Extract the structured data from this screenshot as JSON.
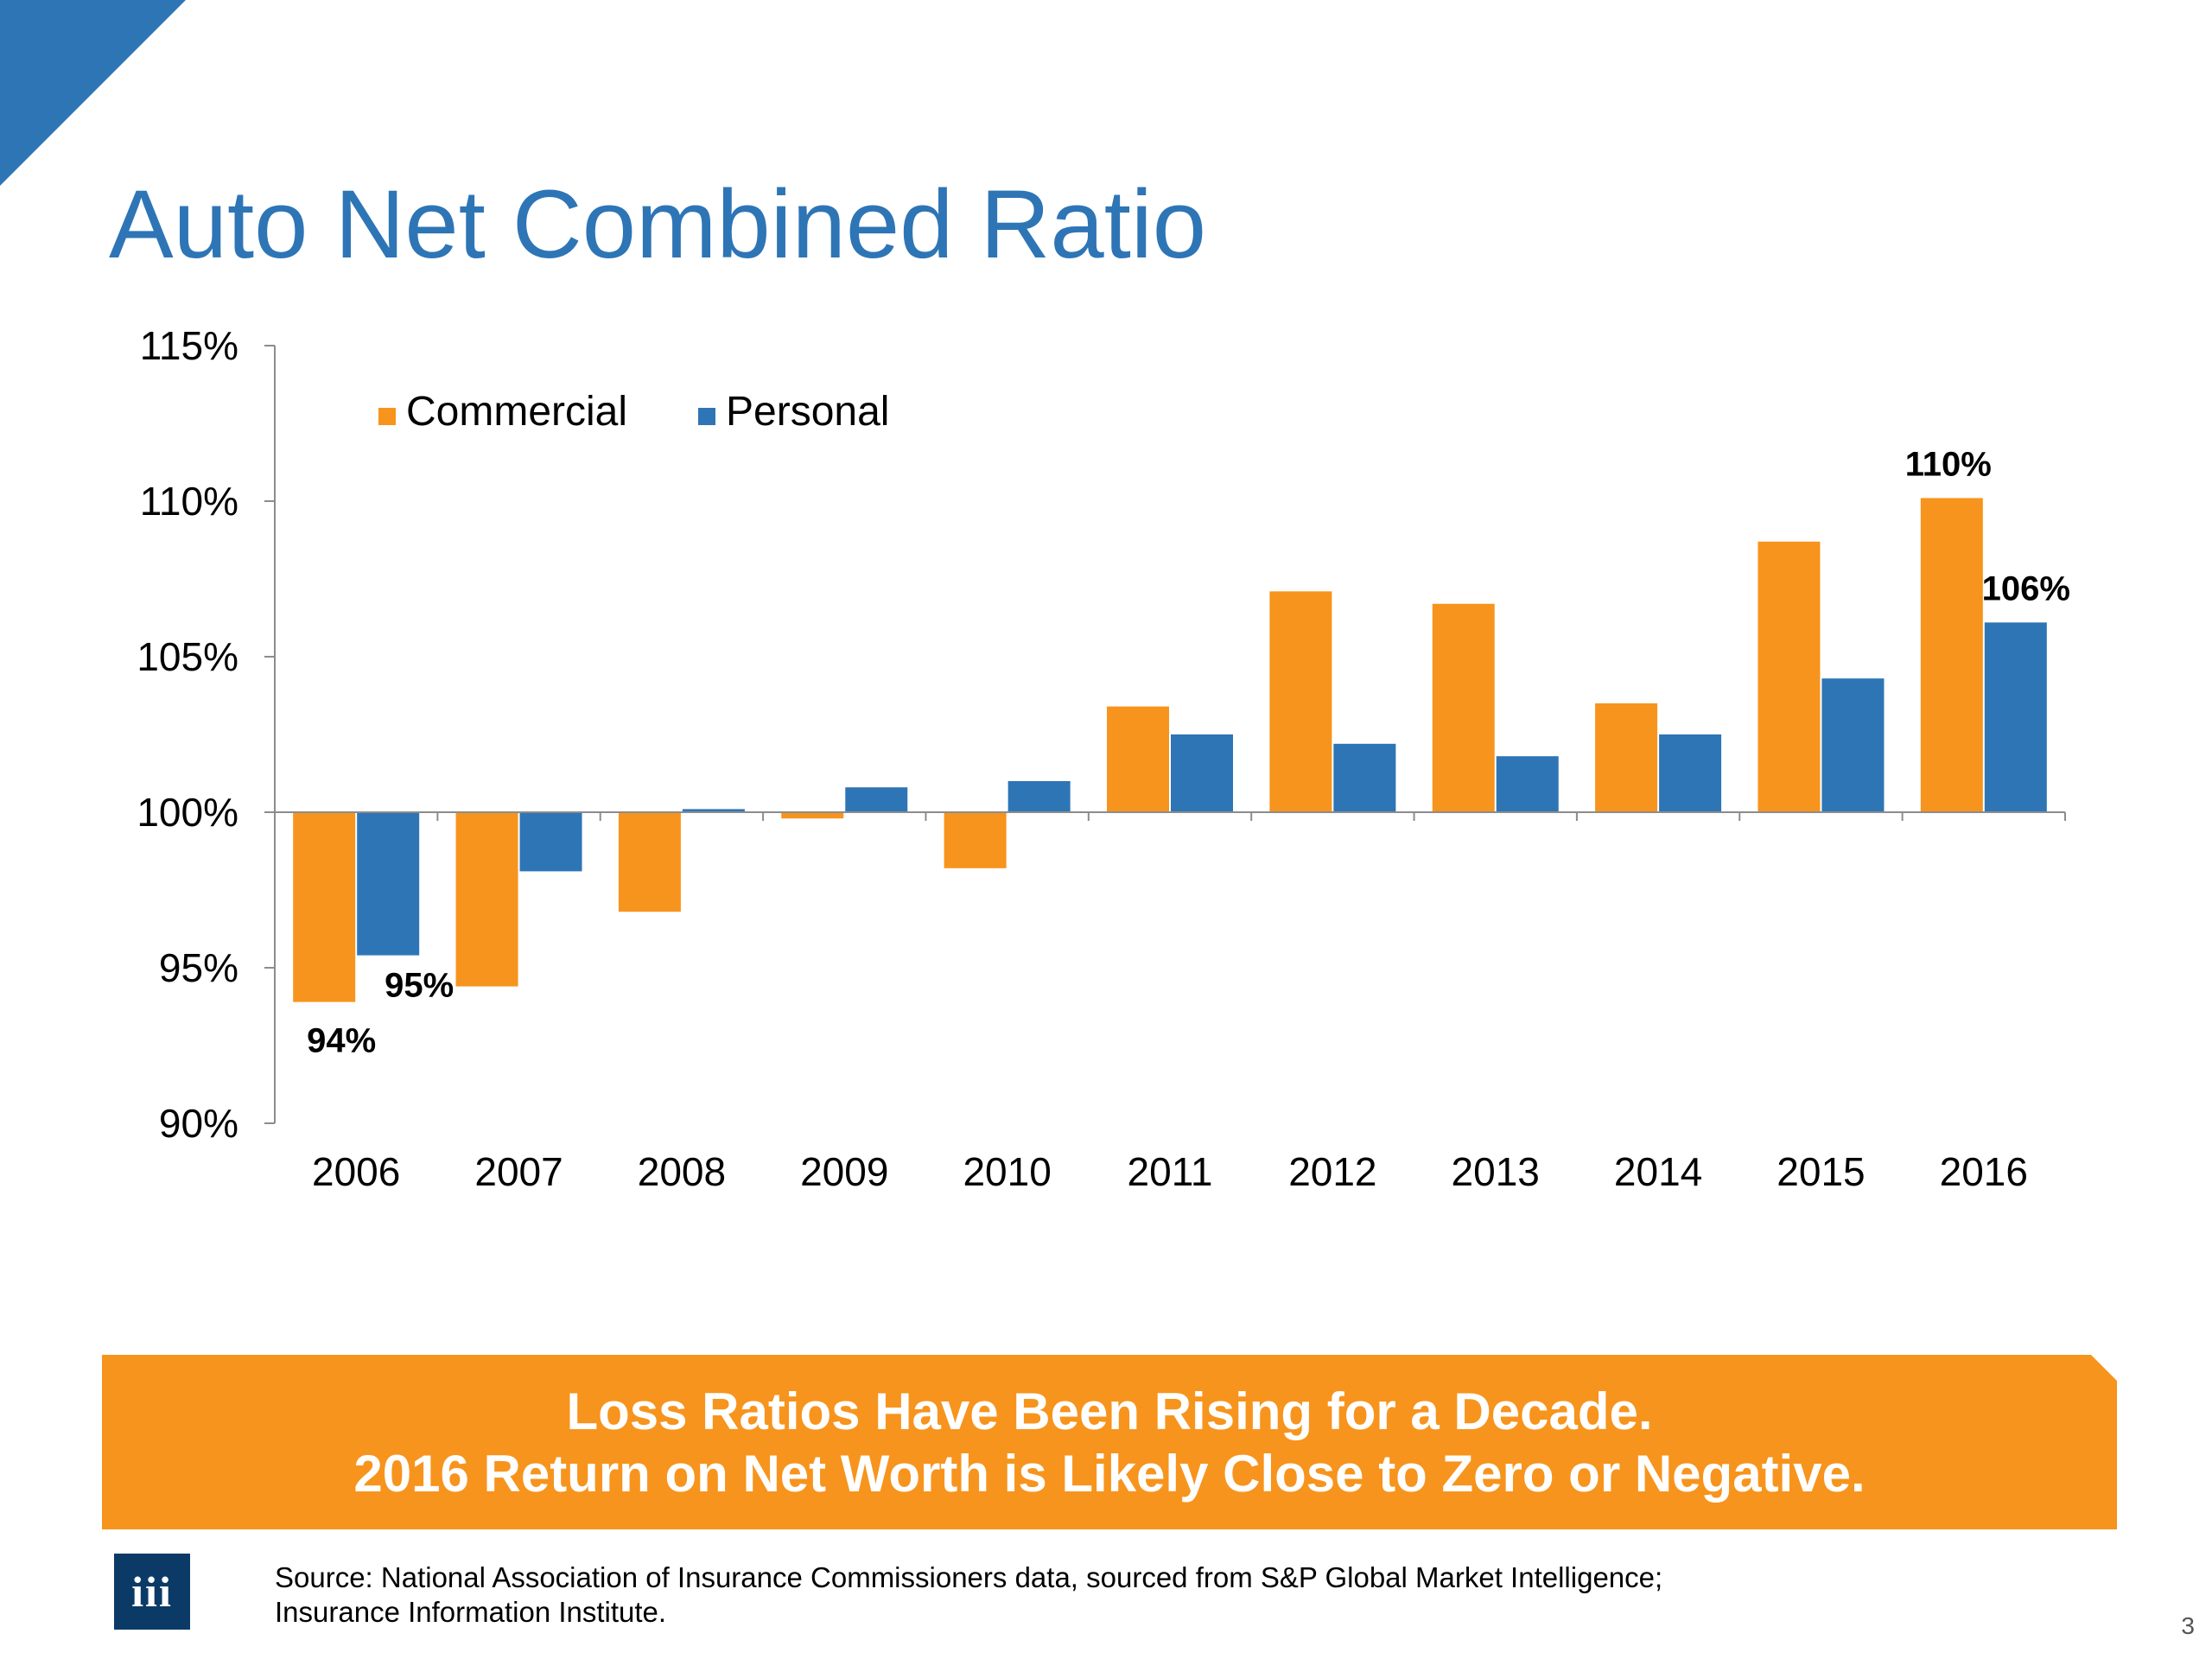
{
  "slide": {
    "title": "Auto Net Combined Ratio",
    "banner_line1": "Loss Ratios Have Been Rising for a Decade.",
    "banner_line2": "2016 Return on Net Worth is Likely Close to Zero or Negative.",
    "source_line1": "Source: National Association of Insurance Commissioners data, sourced from S&P Global Market Intelligence;",
    "source_line2": "Insurance Information Institute.",
    "logo_text": "iii",
    "page_number": "3"
  },
  "colors": {
    "title": "#2e75b6",
    "commercial": "#f7941d",
    "personal": "#2e75b6",
    "banner": "#f7941d",
    "logo_bg": "#0b3a66"
  },
  "chart_data": {
    "type": "bar",
    "title": "",
    "xlabel": "",
    "ylabel": "",
    "categories": [
      "2006",
      "2007",
      "2008",
      "2009",
      "2010",
      "2011",
      "2012",
      "2013",
      "2014",
      "2015",
      "2016"
    ],
    "baseline": 100,
    "ylim": [
      90,
      115
    ],
    "yticks": [
      90,
      95,
      100,
      105,
      110,
      115
    ],
    "ytick_labels": [
      "90%",
      "95%",
      "100%",
      "105%",
      "110%",
      "115%"
    ],
    "legend_position": "top-left",
    "grid": false,
    "series": [
      {
        "name": "Commercial",
        "color": "#f7941d",
        "values": [
          93.9,
          94.4,
          96.8,
          99.8,
          98.2,
          103.4,
          107.1,
          106.7,
          103.5,
          108.7,
          110.1
        ]
      },
      {
        "name": "Personal",
        "color": "#2e75b6",
        "values": [
          95.4,
          98.1,
          100.1,
          100.8,
          101.0,
          102.5,
          102.2,
          101.8,
          102.5,
          104.3,
          106.1
        ]
      }
    ],
    "data_labels": [
      {
        "series": 0,
        "index": 0,
        "text": "94%"
      },
      {
        "series": 1,
        "index": 0,
        "text": "95%"
      },
      {
        "series": 0,
        "index": 10,
        "text": "110%"
      },
      {
        "series": 1,
        "index": 10,
        "text": "106%"
      }
    ]
  }
}
